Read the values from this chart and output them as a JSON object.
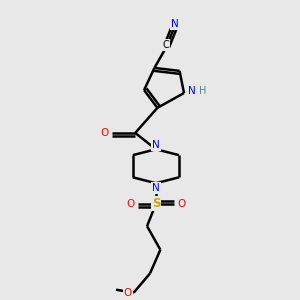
{
  "background_color": "#e8e8e8",
  "atom_colors": {
    "C": "#000000",
    "N": "#0000ff",
    "O": "#ff0000",
    "S": "#ccaa00",
    "H": "#4a8a8a"
  },
  "bond_color": "#000000",
  "fig_width": 3.0,
  "fig_height": 3.0,
  "dpi": 100
}
